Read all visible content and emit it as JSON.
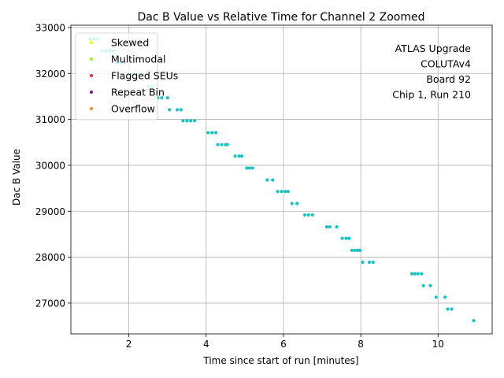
{
  "chart_data": {
    "type": "scatter",
    "title": "Dac B Value vs Relative Time for Channel 2 Zoomed",
    "xlabel": "Time since start of run [minutes]",
    "ylabel": "Dac B Value",
    "xlim": [
      0.5,
      11.4
    ],
    "ylim": [
      26330,
      33050
    ],
    "xticks": [
      2,
      4,
      6,
      8,
      10
    ],
    "xtick_labels": [
      "2",
      "4",
      "6",
      "8",
      "10"
    ],
    "yticks": [
      27000,
      28000,
      29000,
      30000,
      31000,
      32000,
      33000
    ],
    "ytick_labels": [
      "27000",
      "28000",
      "29000",
      "30000",
      "31000",
      "32000",
      "33000"
    ],
    "grid": true,
    "legend_position": "top-left",
    "legend": [
      {
        "label": "Skewed",
        "color": "#fcf403"
      },
      {
        "label": "Multimodal",
        "color": "#9af71c"
      },
      {
        "label": "Flagged SEUs",
        "color": "#e6283c"
      },
      {
        "label": "Repeat Bin",
        "color": "#7a1776"
      },
      {
        "label": "Overflow",
        "color": "#ff8b1a"
      }
    ],
    "annotation": [
      "ATLAS Upgrade",
      "COLUTAv4",
      "Board 92",
      "Chip 1, Run 210"
    ],
    "series": [
      {
        "name": "data",
        "color": "#16c3c3",
        "points": [
          [
            1.0,
            32750
          ],
          [
            1.1,
            32750
          ],
          [
            1.2,
            32750
          ],
          [
            1.3,
            32490
          ],
          [
            1.4,
            32490
          ],
          [
            1.5,
            32490
          ],
          [
            1.6,
            32490
          ],
          [
            1.7,
            32230
          ],
          [
            1.8,
            32230
          ],
          [
            1.9,
            32230
          ],
          [
            2.0,
            31970
          ],
          [
            2.1,
            31970
          ],
          [
            2.2,
            31970
          ],
          [
            2.5,
            31720
          ],
          [
            2.6,
            31720
          ],
          [
            2.75,
            31470
          ],
          [
            2.85,
            31470
          ],
          [
            3.0,
            31470
          ],
          [
            3.05,
            31210
          ],
          [
            3.25,
            31210
          ],
          [
            3.35,
            31210
          ],
          [
            3.4,
            30970
          ],
          [
            3.5,
            30970
          ],
          [
            3.6,
            30970
          ],
          [
            3.7,
            30970
          ],
          [
            4.05,
            30710
          ],
          [
            4.15,
            30710
          ],
          [
            4.25,
            30710
          ],
          [
            4.3,
            30450
          ],
          [
            4.4,
            30450
          ],
          [
            4.5,
            30450
          ],
          [
            4.55,
            30450
          ],
          [
            4.75,
            30200
          ],
          [
            4.85,
            30200
          ],
          [
            4.92,
            30200
          ],
          [
            5.05,
            29940
          ],
          [
            5.12,
            29940
          ],
          [
            5.2,
            29940
          ],
          [
            5.58,
            29680
          ],
          [
            5.72,
            29680
          ],
          [
            5.85,
            29430
          ],
          [
            5.95,
            29430
          ],
          [
            6.05,
            29430
          ],
          [
            6.12,
            29430
          ],
          [
            6.22,
            29170
          ],
          [
            6.35,
            29170
          ],
          [
            6.55,
            28920
          ],
          [
            6.65,
            28920
          ],
          [
            6.75,
            28920
          ],
          [
            7.12,
            28660
          ],
          [
            7.2,
            28660
          ],
          [
            7.38,
            28660
          ],
          [
            7.52,
            28410
          ],
          [
            7.62,
            28410
          ],
          [
            7.7,
            28410
          ],
          [
            7.77,
            28150
          ],
          [
            7.85,
            28150
          ],
          [
            7.92,
            28150
          ],
          [
            7.98,
            28150
          ],
          [
            8.05,
            27890
          ],
          [
            8.22,
            27890
          ],
          [
            8.32,
            27890
          ],
          [
            9.32,
            27640
          ],
          [
            9.4,
            27640
          ],
          [
            9.48,
            27640
          ],
          [
            9.57,
            27640
          ],
          [
            9.62,
            27380
          ],
          [
            9.8,
            27380
          ],
          [
            9.95,
            27130
          ],
          [
            10.18,
            27130
          ],
          [
            10.25,
            26870
          ],
          [
            10.35,
            26870
          ],
          [
            10.92,
            26620
          ]
        ]
      }
    ]
  }
}
